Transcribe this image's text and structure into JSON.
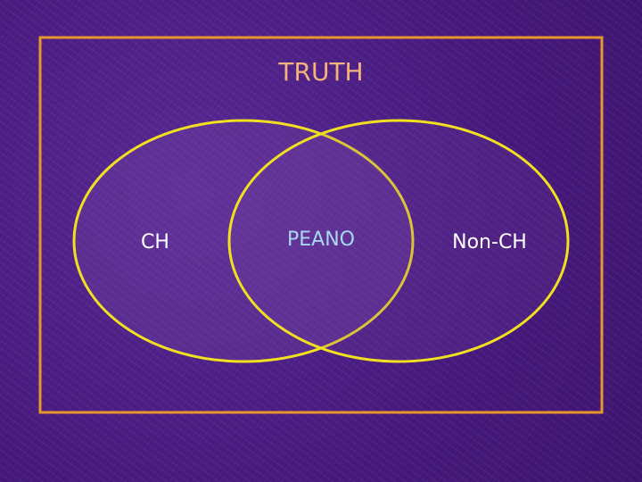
{
  "diagram": {
    "title": "TRUTH",
    "sets": {
      "left": "CH",
      "intersection": "PEANO",
      "right": "Non-CH"
    },
    "colors": {
      "frame": "#e8962c",
      "ellipse_stroke": "#f0e020",
      "title": "#f5b47a",
      "left_label": "#ffffff",
      "intersection_label": "#a8d8f0",
      "right_label": "#ffffff",
      "ellipse_fill": "#7a4aa8"
    }
  }
}
